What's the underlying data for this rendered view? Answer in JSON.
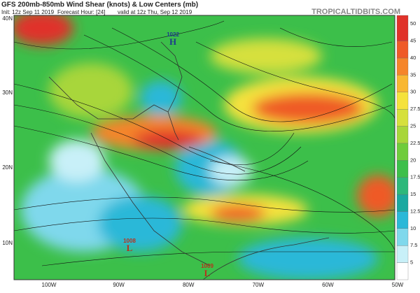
{
  "header": {
    "title": "GFS 200mb-850mb Wind Shear (knots) & Low Centers (mb)",
    "init": "Init: 12z Sep 11 2019",
    "forecast_hour": "Forecast Hour: [24]",
    "valid": "valid at 12z Thu, Sep 12 2019",
    "watermark": "TROPICALTIDBITS.COM"
  },
  "map": {
    "lat_labels": [
      "40N",
      "30N",
      "20N",
      "10N"
    ],
    "lon_labels": [
      "100W",
      "90W",
      "80W",
      "70W",
      "60W",
      "50W"
    ],
    "centers": [
      {
        "pressure": "1022",
        "symbol": "H"
      },
      {
        "pressure": "1008",
        "symbol": "L"
      },
      {
        "pressure": "1009",
        "symbol": "L"
      }
    ]
  },
  "colorbar": {
    "levels": [
      5,
      7.5,
      10,
      12.5,
      15,
      17.5,
      20,
      22.5,
      25,
      27.5,
      30,
      35,
      40,
      45,
      50
    ],
    "colors": [
      "#ffffff",
      "#c8f0f8",
      "#7fd8ec",
      "#2ab8d8",
      "#1aa9a0",
      "#2db87a",
      "#3cbf4a",
      "#6fcc3c",
      "#a8d63a",
      "#d6e03c",
      "#f5e23c",
      "#f8b732",
      "#f5852a",
      "#ef5a28",
      "#e0322a"
    ]
  }
}
